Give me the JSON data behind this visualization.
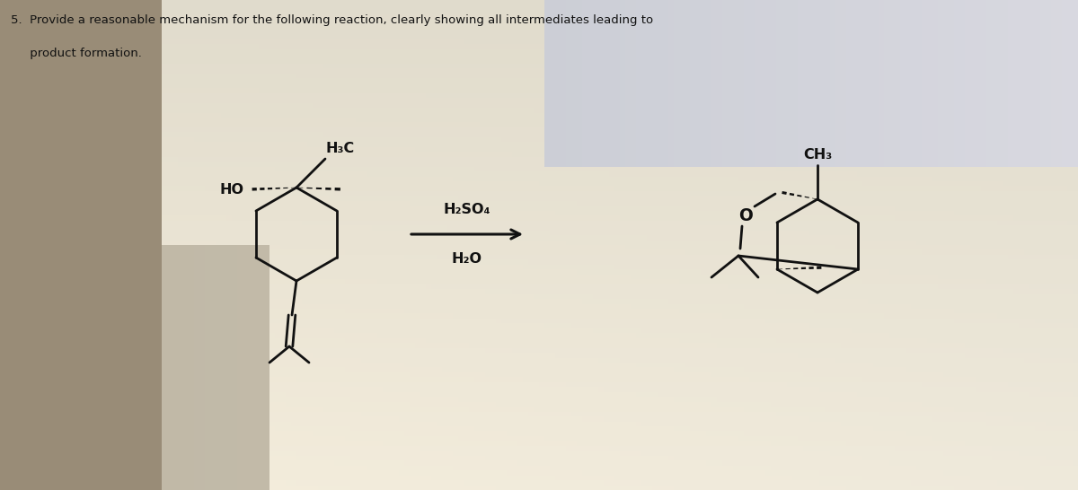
{
  "title_line1": "5.  Provide a reasonable mechanism for the following reaction, clearly showing all intermediates leading to",
  "title_line2": "     product formation.",
  "reagent1": "H₂SO₄",
  "reagent2": "H₂O",
  "text_color": "#111111",
  "figsize": [
    12.0,
    5.46
  ],
  "dpi": 100,
  "bg_light": "#e8e4d8",
  "bg_mid": "#c8c0a8",
  "bg_dark": "#a89878"
}
